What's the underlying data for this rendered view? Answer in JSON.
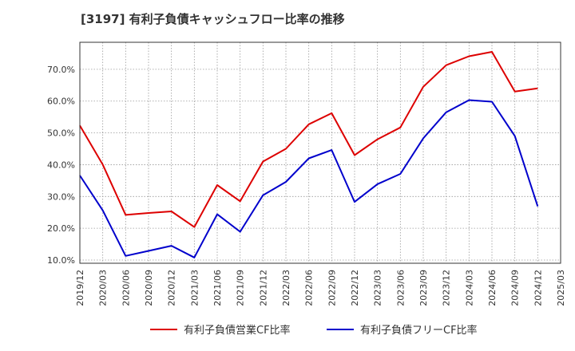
{
  "title": "[3197]  有利子負債キャッシュフロー比率の推移",
  "chart_data": {
    "type": "line",
    "title": "[3197]  有利子負債キャッシュフロー比率の推移",
    "xlabel": "",
    "ylabel": "",
    "x": [
      "2019/12",
      "2020/03",
      "2020/06",
      "2020/09",
      "2020/12",
      "2021/03",
      "2021/06",
      "2021/09",
      "2021/12",
      "2022/03",
      "2022/06",
      "2022/09",
      "2022/12",
      "2023/03",
      "2023/06",
      "2023/09",
      "2023/12",
      "2024/03",
      "2024/06",
      "2024/09",
      "2024/12",
      "2025/03"
    ],
    "x_ticks": [
      "2019/12",
      "2020/03",
      "2020/06",
      "2020/09",
      "2020/12",
      "2021/03",
      "2021/06",
      "2021/09",
      "2021/12",
      "2022/03",
      "2022/06",
      "2022/09",
      "2022/12",
      "2023/03",
      "2023/06",
      "2023/09",
      "2023/12",
      "2024/03",
      "2024/06",
      "2024/09",
      "2024/12",
      "2025/03"
    ],
    "y_ticks": [
      "10.0%",
      "20.0%",
      "30.0%",
      "40.0%",
      "50.0%",
      "60.0%",
      "70.0%"
    ],
    "y_tick_values": [
      10,
      20,
      30,
      40,
      50,
      60,
      70
    ],
    "ylim": [
      9.0,
      78.5
    ],
    "grid": true,
    "legend_position": "bottom",
    "series": [
      {
        "name": "有利子負債営業CF比率",
        "color": "#dd0000",
        "values": [
          52.3,
          40.0,
          24.2,
          24.8,
          25.3,
          20.4,
          33.6,
          28.5,
          41.0,
          45.0,
          52.7,
          56.2,
          43.0,
          48.0,
          51.7,
          64.5,
          71.3,
          74.1,
          75.5,
          63.0,
          64.0,
          null
        ]
      },
      {
        "name": "有利子負債フリーCF比率",
        "color": "#0000cc",
        "values": [
          36.6,
          25.6,
          11.3,
          12.9,
          14.5,
          10.8,
          24.4,
          18.9,
          30.4,
          34.6,
          42.0,
          44.6,
          28.3,
          33.9,
          37.1,
          48.3,
          56.5,
          60.3,
          59.8,
          49.0,
          26.9,
          null
        ]
      }
    ]
  }
}
